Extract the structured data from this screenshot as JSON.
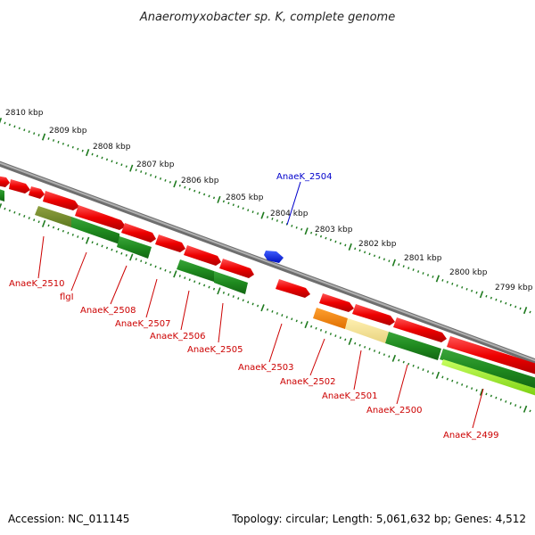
{
  "title": "Anaeromyxobacter sp. K, complete genome",
  "footer": {
    "accession": "Accession: NC_011145",
    "topology": "Topology: circular; Length: 5,061,632 bp; Genes: 4,512"
  },
  "colors": {
    "backbone": "#8a8a8a",
    "tick": "#1e7a1e",
    "label_red": "#cc0000",
    "label_blue": "#0000cc"
  },
  "scale_labels": [
    "2810 kbp",
    "2809 kbp",
    "2808 kbp",
    "2807 kbp",
    "2806 kbp",
    "2805 kbp",
    "2804 kbp",
    "2803 kbp",
    "2802 kbp",
    "2801 kbp",
    "2800 kbp",
    "2799 kbp"
  ],
  "gene_labels": [
    {
      "text": "AnaeK_2504",
      "color": "#0000cc"
    },
    {
      "text": "AnaeK_2510",
      "color": "#cc0000"
    },
    {
      "text": "flgI",
      "color": "#cc0000"
    },
    {
      "text": "AnaeK_2508",
      "color": "#cc0000"
    },
    {
      "text": "AnaeK_2507",
      "color": "#cc0000"
    },
    {
      "text": "AnaeK_2506",
      "color": "#cc0000"
    },
    {
      "text": "AnaeK_2505",
      "color": "#cc0000"
    },
    {
      "text": "AnaeK_2503",
      "color": "#cc0000"
    },
    {
      "text": "AnaeK_2502",
      "color": "#cc0000"
    },
    {
      "text": "AnaeK_2501",
      "color": "#cc0000"
    },
    {
      "text": "AnaeK_2500",
      "color": "#cc0000"
    },
    {
      "text": "AnaeK_2499",
      "color": "#cc0000"
    }
  ]
}
